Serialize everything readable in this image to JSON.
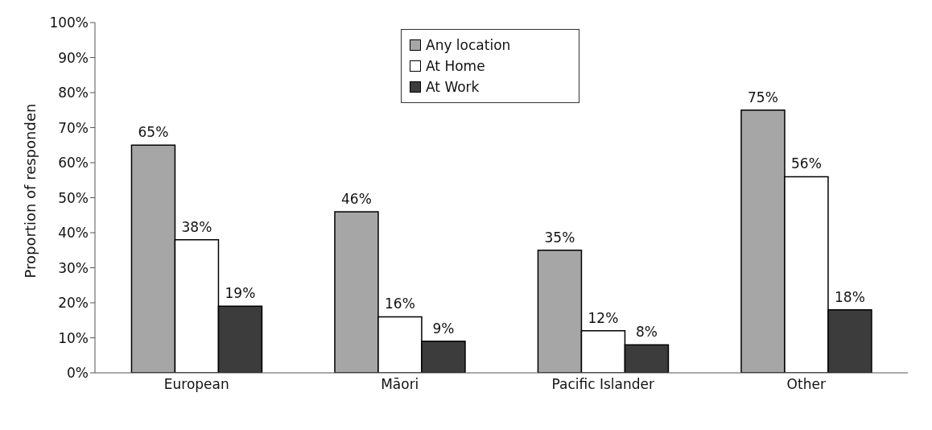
{
  "chart_data": {
    "type": "bar",
    "ylabel": "Proportion of responden",
    "categories": [
      "European",
      "Māori",
      "Pacific Islander",
      "Other"
    ],
    "series": [
      {
        "name": "Any location",
        "color": "#a6a6a6",
        "values": [
          65,
          46,
          35,
          75
        ],
        "value_labels": [
          "65%",
          "46%",
          "35%",
          "75%"
        ]
      },
      {
        "name": "At Home",
        "color": "#ffffff",
        "values": [
          38,
          16,
          12,
          56
        ],
        "value_labels": [
          "38%",
          "16%",
          "12%",
          "56%"
        ]
      },
      {
        "name": "At Work",
        "color": "#3c3c3c",
        "values": [
          19,
          9,
          8,
          18
        ],
        "value_labels": [
          "19%",
          "9%",
          "8%",
          "18%"
        ]
      }
    ],
    "ylim": [
      0,
      100
    ],
    "yticks": [
      {
        "value": 0,
        "label": "0%"
      },
      {
        "value": 10,
        "label": "10%"
      },
      {
        "value": 20,
        "label": "20%"
      },
      {
        "value": 30,
        "label": "30%"
      },
      {
        "value": 40,
        "label": "40%"
      },
      {
        "value": 50,
        "label": "50%"
      },
      {
        "value": 60,
        "label": "60%"
      },
      {
        "value": 70,
        "label": "70%"
      },
      {
        "value": 80,
        "label": "80%"
      },
      {
        "value": 90,
        "label": "90%"
      },
      {
        "value": 100,
        "label": "100%"
      }
    ],
    "grid": false,
    "legend": "top"
  }
}
